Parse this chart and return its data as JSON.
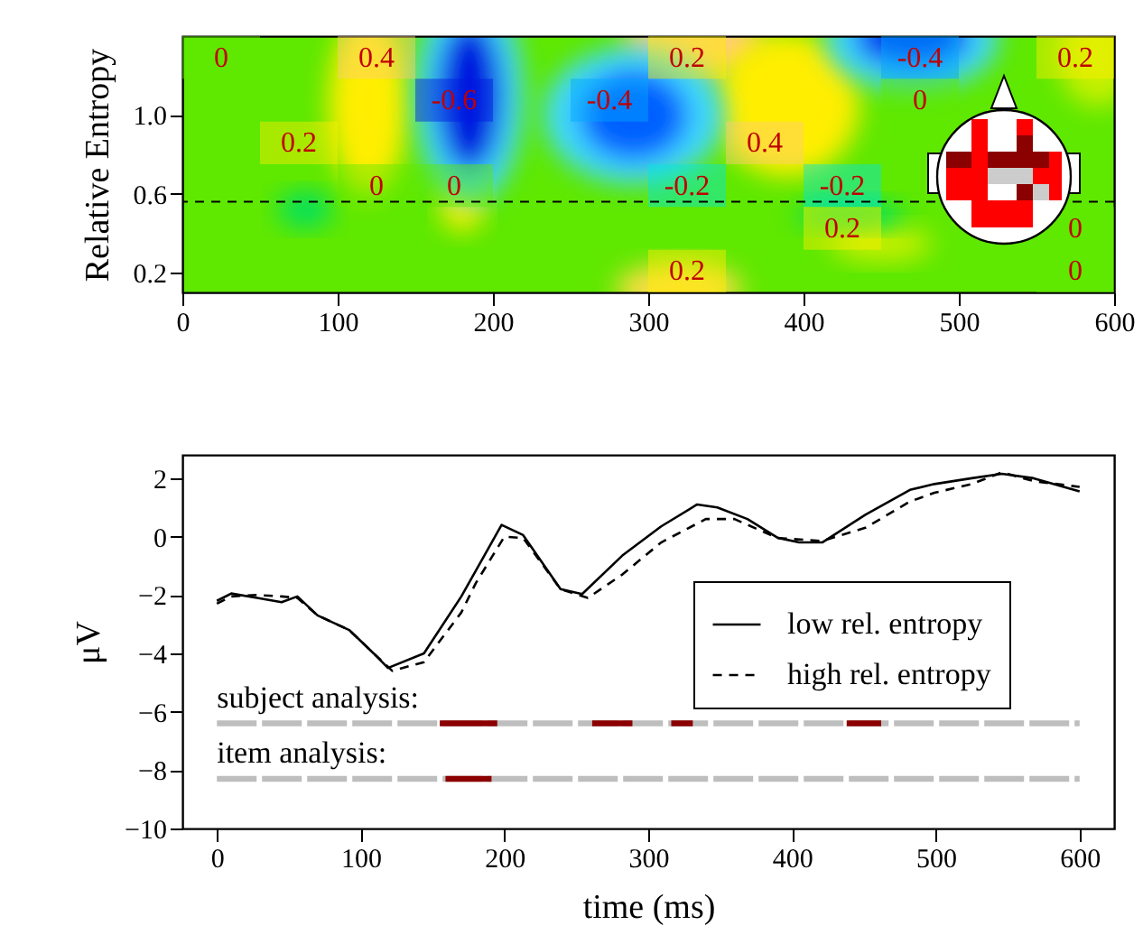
{
  "chart_data": [
    {
      "type": "heatmap",
      "ylabel": "Relative Entropy",
      "x": [
        25,
        75,
        125,
        175,
        275,
        325,
        375,
        425,
        475,
        575
      ],
      "cells": [
        [
          0,
          null,
          0.4,
          null,
          null,
          0.2,
          null,
          null,
          -0.4,
          0.2
        ],
        [
          null,
          null,
          null,
          -0.6,
          -0.4,
          null,
          null,
          null,
          0,
          null
        ],
        [
          null,
          0.2,
          null,
          null,
          null,
          null,
          0.4,
          null,
          null,
          null
        ],
        [
          null,
          null,
          0,
          0,
          null,
          -0.2,
          null,
          -0.2,
          null,
          null
        ],
        [
          null,
          null,
          null,
          null,
          null,
          null,
          null,
          0.2,
          null,
          0
        ],
        [
          null,
          null,
          null,
          null,
          null,
          0.2,
          null,
          null,
          null,
          0
        ]
      ],
      "data_labels": true,
      "xlim": [
        0,
        600
      ],
      "ylim": [
        0.1,
        1.4
      ],
      "xticks": [
        0,
        100,
        200,
        300,
        400,
        500,
        600
      ],
      "yticks": [
        0.2,
        0.6,
        {
          "value": 1,
          "label": "1.0"
        }
      ],
      "ref_lines": [
        {
          "axis": "y",
          "value": 0.56,
          "line_style": "dashed",
          "color": "#000000"
        }
      ]
    },
    {
      "type": "line",
      "xlabel": "time (ms)",
      "ylabel": "μV",
      "xlim": [
        -24,
        624
      ],
      "ylim": [
        -10,
        2.8
      ],
      "xticks": [
        0,
        100,
        200,
        300,
        400,
        500,
        600
      ],
      "yticks": [
        -10,
        -8,
        -6,
        -4,
        -2,
        0,
        2
      ],
      "legend": "bottom right",
      "series": [
        {
          "name": "low rel. entropy",
          "color": "#000000",
          "line_style": "solid",
          "x": [
            0,
            10,
            28,
            45,
            56,
            70,
            92,
            109,
            119,
            144,
            170,
            198,
            213,
            239,
            254,
            282,
            309,
            334,
            348,
            369,
            390,
            405,
            421,
            451,
            482,
            499,
            525,
            546,
            568,
            600
          ],
          "values": [
            -2.2,
            -1.95,
            -2.1,
            -2.25,
            -2.05,
            -2.7,
            -3.2,
            -4.0,
            -4.5,
            -4.0,
            -2.05,
            0.4,
            0.05,
            -1.8,
            -1.97,
            -0.65,
            0.35,
            1.1,
            1.0,
            0.6,
            -0.04,
            -0.2,
            -0.2,
            0.75,
            1.6,
            1.8,
            2.0,
            2.15,
            2.0,
            1.55
          ]
        },
        {
          "name": "high rel. entropy",
          "color": "#000000",
          "line_style": "dashed",
          "x": [
            0,
            10,
            28,
            45,
            56,
            70,
            92,
            109,
            122,
            144,
            170,
            180,
            200,
            213,
            239,
            258,
            282,
            309,
            340,
            360,
            390,
            421,
            451,
            482,
            499,
            525,
            546,
            568,
            600
          ],
          "values": [
            -2.3,
            -2.05,
            -2.0,
            -2.05,
            -2.1,
            -2.7,
            -3.2,
            -4.0,
            -4.6,
            -4.3,
            -2.6,
            -1.6,
            0.0,
            -0.05,
            -1.8,
            -2.1,
            -1.3,
            -0.2,
            0.6,
            0.6,
            -0.05,
            -0.15,
            0.3,
            1.2,
            1.5,
            1.8,
            2.2,
            1.9,
            1.7
          ]
        },
        {
          "color": "#bebebe",
          "line_style": "dashed",
          "x": [
            0,
            600
          ],
          "values": [
            -6.4,
            -6.4
          ]
        },
        {
          "color": "#8b0000",
          "line_style": "solid",
          "x": [
            155,
            195,
            196,
            261,
            289,
            290,
            316,
            331,
            332,
            438,
            462
          ],
          "values": [
            -6.4,
            -6.4,
            null,
            -6.4,
            -6.4,
            null,
            -6.4,
            -6.4,
            null,
            -6.4,
            -6.4
          ]
        },
        {
          "color": "#bebebe",
          "line_style": "dashed",
          "x": [
            0,
            600
          ],
          "values": [
            -8.3,
            -8.3
          ]
        },
        {
          "color": "#8b0000",
          "line_style": "solid",
          "x": [
            159,
            191
          ],
          "values": [
            -8.3,
            -8.3
          ]
        }
      ],
      "annotations": [
        "subject analysis:",
        "item analysis:"
      ],
      "grid": false
    }
  ]
}
